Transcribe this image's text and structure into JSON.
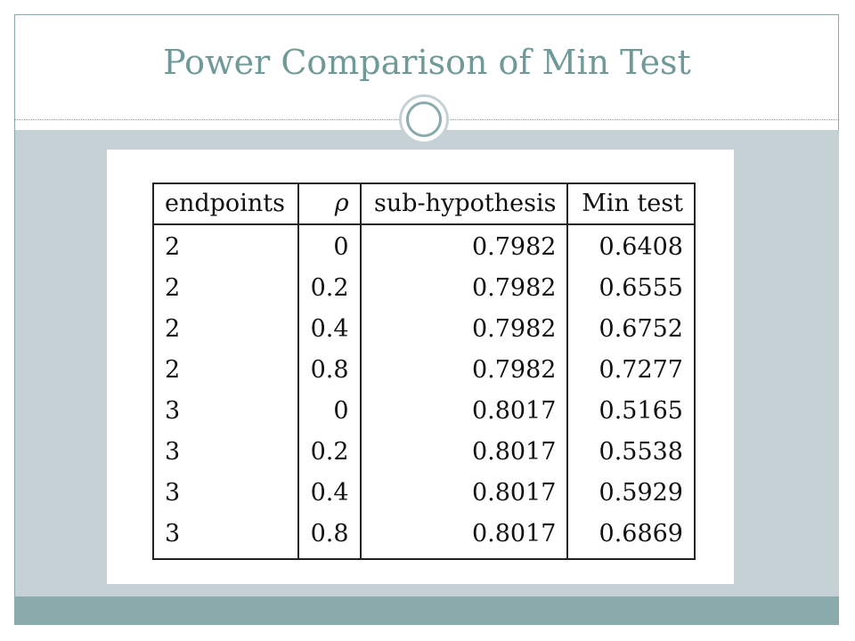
{
  "slide": {
    "title": "Power Comparison of Min Test"
  },
  "table": {
    "headers": [
      "endpoints",
      "ρ",
      "sub-hypothesis",
      "Min test"
    ],
    "rows": [
      [
        "2",
        "0",
        "0.7982",
        "0.6408"
      ],
      [
        "2",
        "0.2",
        "0.7982",
        "0.6555"
      ],
      [
        "2",
        "0.4",
        "0.7982",
        "0.6752"
      ],
      [
        "2",
        "0.8",
        "0.7982",
        "0.7277"
      ],
      [
        "3",
        "0",
        "0.8017",
        "0.5165"
      ],
      [
        "3",
        "0.2",
        "0.8017",
        "0.5538"
      ],
      [
        "3",
        "0.4",
        "0.8017",
        "0.5929"
      ],
      [
        "3",
        "0.8",
        "0.8017",
        "0.6869"
      ]
    ]
  },
  "colors": {
    "title": "#6f9a98",
    "content_band": "#c6d1d6",
    "bottom_band": "#8aabac",
    "frame": "#8aa8a8"
  }
}
